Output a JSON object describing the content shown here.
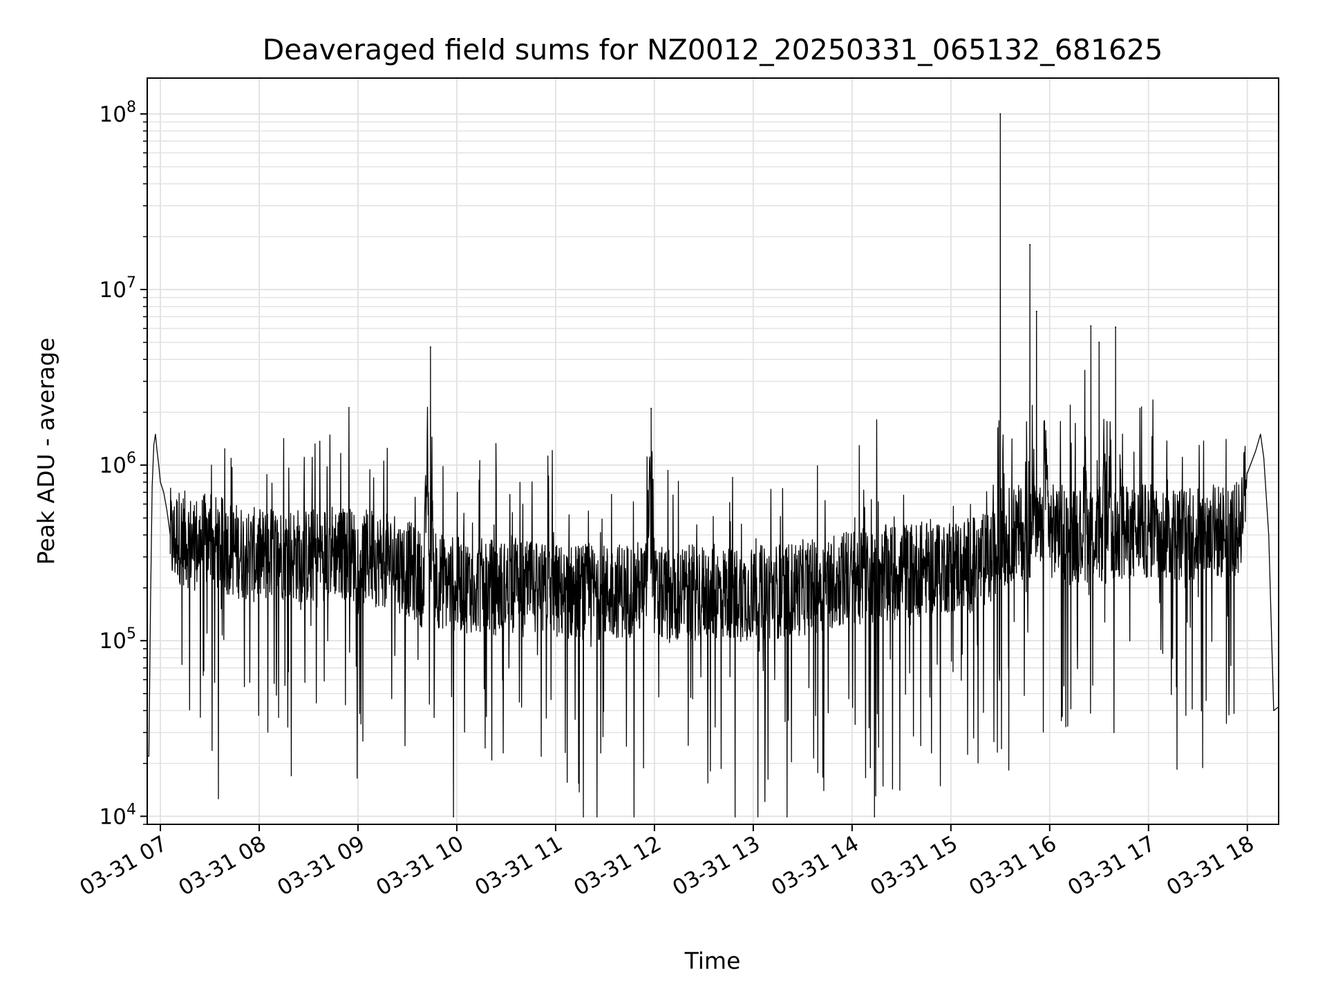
{
  "chart_data": {
    "type": "line",
    "title": "Deaveraged field sums for NZ0012_20250331_065132_681625",
    "xlabel": "Time",
    "ylabel": "Peak ADU - average",
    "y_scale": "log",
    "x_range": [
      "2025-03-31 06:52",
      "2025-03-31 18:19"
    ],
    "ylim": [
      9000,
      160000000
    ],
    "y_major_ticks": [
      {
        "value": 10000,
        "base": "10",
        "exp": "4"
      },
      {
        "value": 100000,
        "base": "10",
        "exp": "5"
      },
      {
        "value": 1000000,
        "base": "10",
        "exp": "6"
      },
      {
        "value": 10000000,
        "base": "10",
        "exp": "7"
      },
      {
        "value": 100000000,
        "base": "10",
        "exp": "8"
      }
    ],
    "x_ticks": [
      {
        "time": "2025-03-31 07:00",
        "label": "03-31 07"
      },
      {
        "time": "2025-03-31 08:00",
        "label": "03-31 08"
      },
      {
        "time": "2025-03-31 09:00",
        "label": "03-31 09"
      },
      {
        "time": "2025-03-31 10:00",
        "label": "03-31 10"
      },
      {
        "time": "2025-03-31 11:00",
        "label": "03-31 11"
      },
      {
        "time": "2025-03-31 12:00",
        "label": "03-31 12"
      },
      {
        "time": "2025-03-31 13:00",
        "label": "03-31 13"
      },
      {
        "time": "2025-03-31 14:00",
        "label": "03-31 14"
      },
      {
        "time": "2025-03-31 15:00",
        "label": "03-31 15"
      },
      {
        "time": "2025-03-31 16:00",
        "label": "03-31 16"
      },
      {
        "time": "2025-03-31 17:00",
        "label": "03-31 17"
      },
      {
        "time": "2025-03-31 18:00",
        "label": "03-31 18"
      }
    ],
    "grid": true,
    "line_color": "#000000",
    "grid_color": "#e3e3e3",
    "series": [
      {
        "x": [
          "2025-03-31 06:52",
          "2025-03-31 06:53",
          "2025-03-31 06:54",
          "2025-03-31 06:55",
          "2025-03-31 06:56",
          "2025-03-31 06:57",
          "2025-03-31 06:58",
          "2025-03-31 06:59",
          "2025-03-31 07:00",
          "2025-03-31 07:02",
          "2025-03-31 07:04",
          "2025-03-31 07:06",
          "2025-03-31 07:08",
          "2025-03-31 07:10",
          "2025-03-31 07:15",
          "2025-03-31 07:20",
          "2025-03-31 07:30",
          "2025-03-31 07:45",
          "2025-03-31 08:00",
          "2025-03-31 08:15",
          "2025-03-31 08:30",
          "2025-03-31 08:45",
          "2025-03-31 09:00",
          "2025-03-31 09:15",
          "2025-03-31 09:30",
          "2025-03-31 09:40",
          "2025-03-31 09:44",
          "2025-03-31 09:46",
          "2025-03-31 09:48",
          "2025-03-31 10:00",
          "2025-03-31 10:30",
          "2025-03-31 11:00",
          "2025-03-31 11:30",
          "2025-03-31 11:55",
          "2025-03-31 11:58",
          "2025-03-31 12:00",
          "2025-03-31 12:30",
          "2025-03-31 13:00",
          "2025-03-31 13:30",
          "2025-03-31 14:00",
          "2025-03-31 14:30",
          "2025-03-31 15:00",
          "2025-03-31 15:15",
          "2025-03-31 15:28",
          "2025-03-31 15:30",
          "2025-03-31 15:32",
          "2025-03-31 15:35",
          "2025-03-31 15:45",
          "2025-03-31 15:48",
          "2025-03-31 15:50",
          "2025-03-31 15:52",
          "2025-03-31 16:00",
          "2025-03-31 16:20",
          "2025-03-31 16:25",
          "2025-03-31 16:30",
          "2025-03-31 16:35",
          "2025-03-31 16:40",
          "2025-03-31 16:45",
          "2025-03-31 17:00",
          "2025-03-31 17:30",
          "2025-03-31 17:55",
          "2025-03-31 18:00",
          "2025-03-31 18:05",
          "2025-03-31 18:08",
          "2025-03-31 18:10",
          "2025-03-31 18:13",
          "2025-03-31 18:16",
          "2025-03-31 18:19"
        ],
        "values": [
          22000,
          22000,
          160000,
          750000,
          1300000,
          1500000,
          1200000,
          1000000,
          800000,
          700000,
          550000,
          400000,
          350000,
          400000,
          380000,
          360000,
          370000,
          330000,
          300000,
          320000,
          300000,
          330000,
          300000,
          290000,
          260000,
          220000,
          4700000,
          200000,
          220000,
          210000,
          200000,
          190000,
          190000,
          200000,
          2100000,
          180000,
          190000,
          185000,
          200000,
          230000,
          250000,
          270000,
          270000,
          300000,
          100000000,
          350000,
          400000,
          420000,
          18000000,
          400000,
          7500000,
          420000,
          400000,
          6200000,
          5000000,
          420000,
          6100000,
          400000,
          420000,
          400000,
          430000,
          900000,
          1200000,
          1500000,
          1100000,
          400000,
          40000,
          42000
        ]
      }
    ]
  }
}
